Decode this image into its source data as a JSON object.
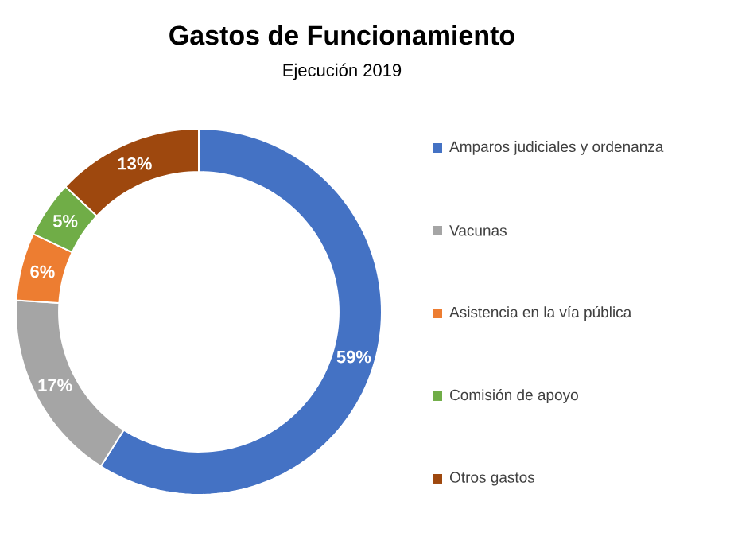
{
  "chart_data": {
    "type": "donut",
    "title": "Gastos de Funcionamiento",
    "subtitle": "Ejecución 2019",
    "categories": [
      "Amparos judiciales y ordenanza",
      "Vacunas",
      "Asistencia en la vía pública",
      "Comisión de apoyo",
      "Otros gastos"
    ],
    "values": [
      59,
      17,
      6,
      5,
      13
    ],
    "value_labels": [
      "59%",
      "17%",
      "6%",
      "5%",
      "13%"
    ],
    "colors": [
      "#4472c4",
      "#a5a5a5",
      "#ed7d31",
      "#70ad47",
      "#9e480e"
    ],
    "legend": "right"
  }
}
